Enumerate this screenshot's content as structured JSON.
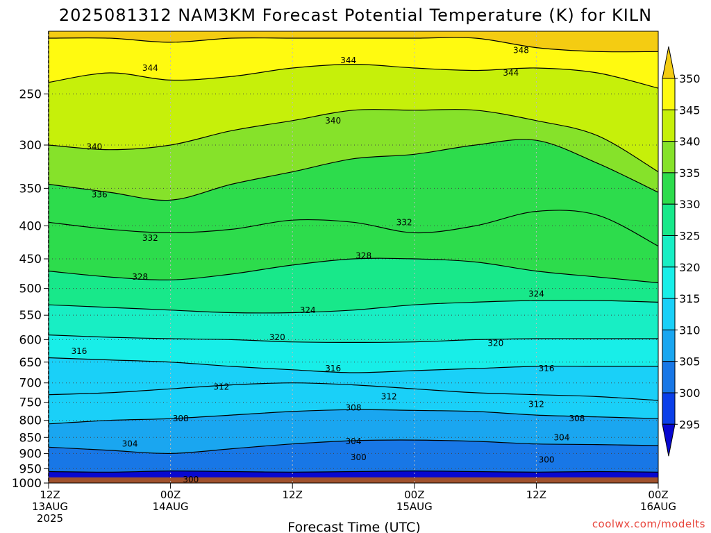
{
  "chart_data": {
    "type": "heatmap",
    "title": "2025081312 NAM3KM Forecast Potential Temperature (K) for KILN",
    "xlabel": "Forecast Time (UTC)",
    "ylabel": "",
    "x_ticks": [
      {
        "hours": 0,
        "lines": [
          "12Z",
          "13AUG",
          "2025"
        ]
      },
      {
        "hours": 12,
        "lines": [
          "00Z",
          "14AUG"
        ]
      },
      {
        "hours": 24,
        "lines": [
          "12Z"
        ]
      },
      {
        "hours": 36,
        "lines": [
          "00Z",
          "15AUG"
        ]
      },
      {
        "hours": 48,
        "lines": [
          "12Z"
        ]
      },
      {
        "hours": 60,
        "lines": [
          "00Z",
          "16AUG"
        ]
      }
    ],
    "x_range_hours": [
      0,
      60
    ],
    "y_ticks_hpa": [
      250,
      300,
      350,
      400,
      450,
      500,
      550,
      600,
      650,
      700,
      750,
      800,
      850,
      900,
      950,
      1000
    ],
    "y_range_hpa": [
      200,
      1000
    ],
    "y_scale": "log-pressure",
    "grid": true,
    "colorbar": {
      "levels": [
        295,
        300,
        305,
        310,
        315,
        320,
        325,
        330,
        335,
        340,
        345,
        350
      ],
      "colors": [
        "#0808d0",
        "#0b3fe8",
        "#1877e6",
        "#1aa6f0",
        "#1ad0f8",
        "#18eee8",
        "#18eec4",
        "#18e88a",
        "#2ddc4c",
        "#86e22a",
        "#c6f00a",
        "#fffa10",
        "#f4cc12"
      ],
      "units": "K"
    },
    "series": [
      {
        "theta": 300,
        "pressures": [
          960,
          962,
          958,
          960,
          962,
          960,
          958,
          960,
          962,
          960,
          962
        ]
      },
      {
        "theta": 304,
        "pressures": [
          880,
          890,
          900,
          885,
          870,
          860,
          858,
          862,
          870,
          872,
          875
        ]
      },
      {
        "theta": 308,
        "pressures": [
          810,
          800,
          795,
          785,
          775,
          770,
          772,
          775,
          785,
          790,
          795
        ]
      },
      {
        "theta": 312,
        "pressures": [
          730,
          725,
          715,
          705,
          700,
          705,
          715,
          725,
          730,
          735,
          745
        ]
      },
      {
        "theta": 316,
        "pressures": [
          640,
          645,
          650,
          660,
          668,
          675,
          670,
          665,
          660,
          660,
          660
        ]
      },
      {
        "theta": 320,
        "pressures": [
          590,
          595,
          598,
          600,
          605,
          606,
          605,
          600,
          598,
          598,
          598
        ]
      },
      {
        "theta": 324,
        "pressures": [
          530,
          535,
          540,
          545,
          545,
          540,
          530,
          525,
          522,
          522,
          525
        ]
      },
      {
        "theta": 328,
        "pressures": [
          470,
          480,
          485,
          475,
          460,
          450,
          450,
          455,
          470,
          480,
          490
        ]
      },
      {
        "theta": 332,
        "pressures": [
          395,
          405,
          410,
          405,
          392,
          395,
          410,
          400,
          380,
          385,
          430
        ]
      },
      {
        "theta": 336,
        "pressures": [
          345,
          355,
          365,
          345,
          330,
          315,
          310,
          300,
          295,
          320,
          355
        ]
      },
      {
        "theta": 340,
        "pressures": [
          300,
          305,
          300,
          285,
          275,
          265,
          265,
          265,
          275,
          290,
          330
        ]
      },
      {
        "theta": 344,
        "pressures": [
          240,
          232,
          238,
          235,
          228,
          225,
          228,
          230,
          228,
          232,
          245
        ]
      },
      {
        "theta": 348,
        "pressures": [
          205,
          205,
          208,
          205,
          205,
          205,
          205,
          205,
          212,
          215,
          215
        ]
      }
    ],
    "contour_labels": [
      {
        "text": "348",
        "hours": 46.5,
        "hpa": 214
      },
      {
        "text": "344",
        "hours": 10.0,
        "hpa": 228
      },
      {
        "text": "344",
        "hours": 29.5,
        "hpa": 222
      },
      {
        "text": "344",
        "hours": 45.5,
        "hpa": 232
      },
      {
        "text": "340",
        "hours": 4.5,
        "hpa": 302
      },
      {
        "text": "340",
        "hours": 28.0,
        "hpa": 275
      },
      {
        "text": "336",
        "hours": 5.0,
        "hpa": 358
      },
      {
        "text": "332",
        "hours": 10.0,
        "hpa": 418
      },
      {
        "text": "332",
        "hours": 35.0,
        "hpa": 395
      },
      {
        "text": "328",
        "hours": 9.0,
        "hpa": 480
      },
      {
        "text": "328",
        "hours": 31.0,
        "hpa": 445
      },
      {
        "text": "324",
        "hours": 25.5,
        "hpa": 540
      },
      {
        "text": "324",
        "hours": 48.0,
        "hpa": 510
      },
      {
        "text": "320",
        "hours": 22.5,
        "hpa": 595
      },
      {
        "text": "320",
        "hours": 44.0,
        "hpa": 608
      },
      {
        "text": "316",
        "hours": 3.0,
        "hpa": 625
      },
      {
        "text": "316",
        "hours": 28.0,
        "hpa": 665
      },
      {
        "text": "316",
        "hours": 49.0,
        "hpa": 665
      },
      {
        "text": "312",
        "hours": 17.0,
        "hpa": 710
      },
      {
        "text": "312",
        "hours": 33.5,
        "hpa": 735
      },
      {
        "text": "312",
        "hours": 48.0,
        "hpa": 755
      },
      {
        "text": "308",
        "hours": 13.0,
        "hpa": 795
      },
      {
        "text": "308",
        "hours": 30.0,
        "hpa": 765
      },
      {
        "text": "308",
        "hours": 52.0,
        "hpa": 795
      },
      {
        "text": "304",
        "hours": 8.0,
        "hpa": 870
      },
      {
        "text": "304",
        "hours": 30.0,
        "hpa": 862
      },
      {
        "text": "304",
        "hours": 50.5,
        "hpa": 850
      },
      {
        "text": "300",
        "hours": 30.5,
        "hpa": 913
      },
      {
        "text": "300",
        "hours": 49.0,
        "hpa": 920
      },
      {
        "text": "300",
        "hours": 14.0,
        "hpa": 988
      }
    ],
    "ground_hpa": 980
  },
  "credit": "coolwx.com/modelts"
}
